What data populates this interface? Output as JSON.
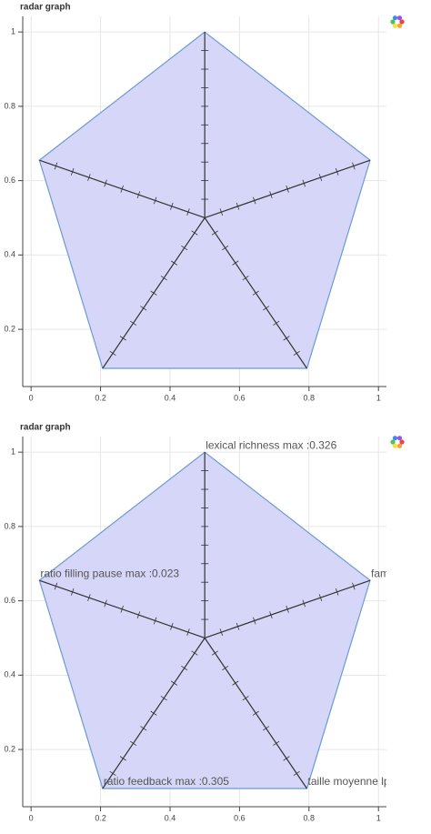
{
  "chart_data": [
    {
      "type": "radar",
      "title": "radar graph",
      "x": [
        0.5,
        0.976,
        0.794,
        0.206,
        0.024
      ],
      "y": [
        1.0,
        0.655,
        0.095,
        0.095,
        0.655
      ],
      "fill_color": "#d6d6f8",
      "line_color": "#6b9bd1",
      "spoke_color": "#333333",
      "xlim": [
        -0.024,
        1.023
      ],
      "ylim": [
        0.046,
        1.042
      ],
      "xticks": [
        0,
        0.2,
        0.4,
        0.6,
        0.8,
        1
      ],
      "yticks": [
        0.2,
        0.4,
        0.6,
        0.8,
        1
      ],
      "grid": true
    },
    {
      "type": "radar",
      "title": "radar graph",
      "x": [
        0.5,
        0.976,
        0.794,
        0.206,
        0.024
      ],
      "y": [
        1.0,
        0.655,
        0.095,
        0.095,
        0.655
      ],
      "labels": [
        "lexical richness max :0.326",
        "fam",
        "taille moyenne lp",
        "ratio feedback max :0.305",
        "ratio filling pause max :0.023"
      ],
      "fill_color": "#d6d6f8",
      "line_color": "#6b9bd1",
      "spoke_color": "#333333",
      "xlim": [
        -0.024,
        1.023
      ],
      "ylim": [
        0.046,
        1.042
      ],
      "xticks": [
        0,
        0.2,
        0.4,
        0.6,
        0.8,
        1
      ],
      "yticks": [
        0.2,
        0.4,
        0.6,
        0.8,
        1
      ],
      "grid": true
    }
  ]
}
